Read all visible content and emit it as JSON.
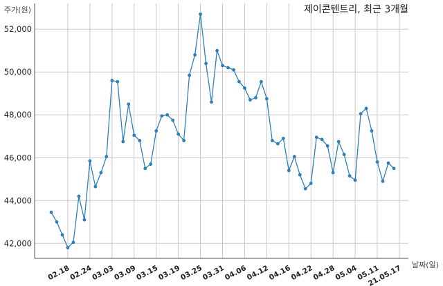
{
  "chart_data": {
    "type": "line",
    "title": "제이콘텐트리, 최근 3개월",
    "ylabel": "주가(원)",
    "xlabel": "날짜(일)",
    "ylim": [
      41300,
      53200
    ],
    "yticks": [
      42000,
      44000,
      46000,
      48000,
      50000,
      52000
    ],
    "ytick_labels": [
      "42,000",
      "44,000",
      "46,000",
      "48,000",
      "50,000",
      "52,000"
    ],
    "xtick_labels": [
      "02.18",
      "02.24",
      "03.03",
      "03.09",
      "03.15",
      "03.19",
      "03.25",
      "03.31",
      "04.06",
      "04.12",
      "04.16",
      "04.22",
      "04.28",
      "05.04",
      "05.11",
      "21.05.17"
    ],
    "xtick_index": [
      3,
      7,
      11,
      15,
      19,
      23,
      27,
      31,
      35,
      39,
      43,
      47,
      51,
      55,
      59,
      63
    ],
    "grid": true,
    "colors": {
      "line": "#2e7fb8",
      "marker": "#2e7fb8"
    },
    "series": [
      {
        "name": "",
        "values": [
          43450,
          43000,
          42400,
          41800,
          42050,
          44200,
          43100,
          45850,
          44650,
          45300,
          46050,
          49600,
          49550,
          46750,
          48500,
          47050,
          46800,
          45500,
          45700,
          47250,
          47950,
          48000,
          47750,
          47100,
          46800,
          49850,
          50800,
          52700,
          50400,
          48600,
          51000,
          50300,
          50200,
          50100,
          49550,
          49250,
          48700,
          48800,
          49550,
          48750,
          46800,
          46650,
          46900,
          45400,
          46050,
          45200,
          44550,
          44800,
          46950,
          46850,
          46550,
          45300,
          46750,
          46150,
          45150,
          44950,
          48050,
          48300,
          47250,
          45800,
          44900,
          45750,
          45500
        ]
      }
    ]
  }
}
